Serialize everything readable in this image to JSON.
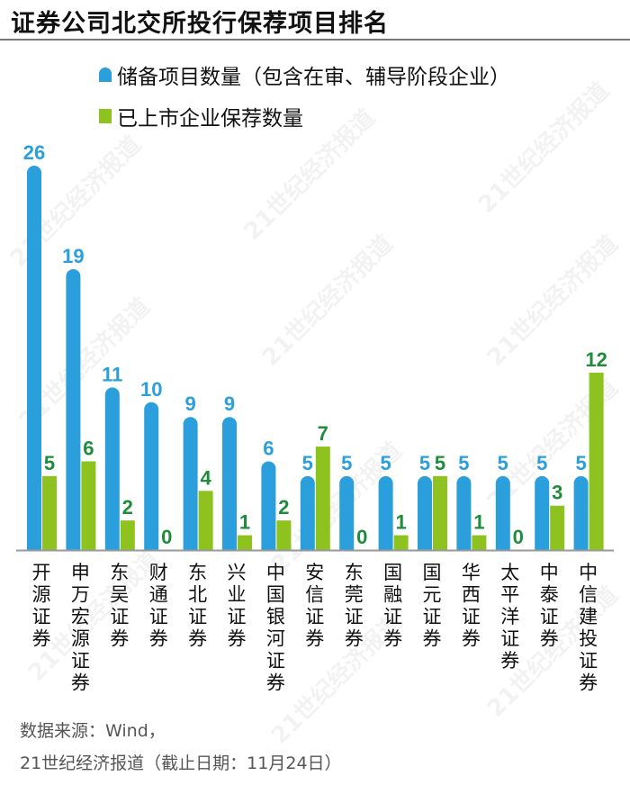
{
  "title": "证券公司北交所投行保荐项目排名",
  "footer": {
    "source": "数据来源：Wind，",
    "credit": "21世纪经济报道（截止日期：11月24日）"
  },
  "watermark": "21世纪经济报道",
  "colors": {
    "blue": "#2a9fdc",
    "green": "#8dc21f",
    "green_label": "#1e8c3a"
  },
  "chart_data": {
    "type": "bar",
    "title": "证券公司北交所投行保荐项目排名",
    "categories": [
      "开源证券",
      "申万宏源证券",
      "东吴证券",
      "财通证券",
      "东北证券",
      "兴业证券",
      "中国银河证券",
      "安信证券",
      "东莞证券",
      "国融证券",
      "国元证券",
      "华西证券",
      "太平洋证券",
      "中泰证券",
      "中信建投证券"
    ],
    "series": [
      {
        "name": "储备项目数量（包含在审、辅导阶段企业）",
        "values": [
          26,
          19,
          11,
          10,
          9,
          9,
          6,
          5,
          5,
          5,
          5,
          5,
          5,
          5,
          5
        ]
      },
      {
        "name": "已上市企业保荐数量",
        "values": [
          5,
          6,
          2,
          0,
          4,
          1,
          2,
          7,
          0,
          1,
          5,
          1,
          0,
          3,
          12
        ]
      }
    ],
    "ylim": [
      0,
      26
    ],
    "legend": "top-left",
    "grid": false
  }
}
